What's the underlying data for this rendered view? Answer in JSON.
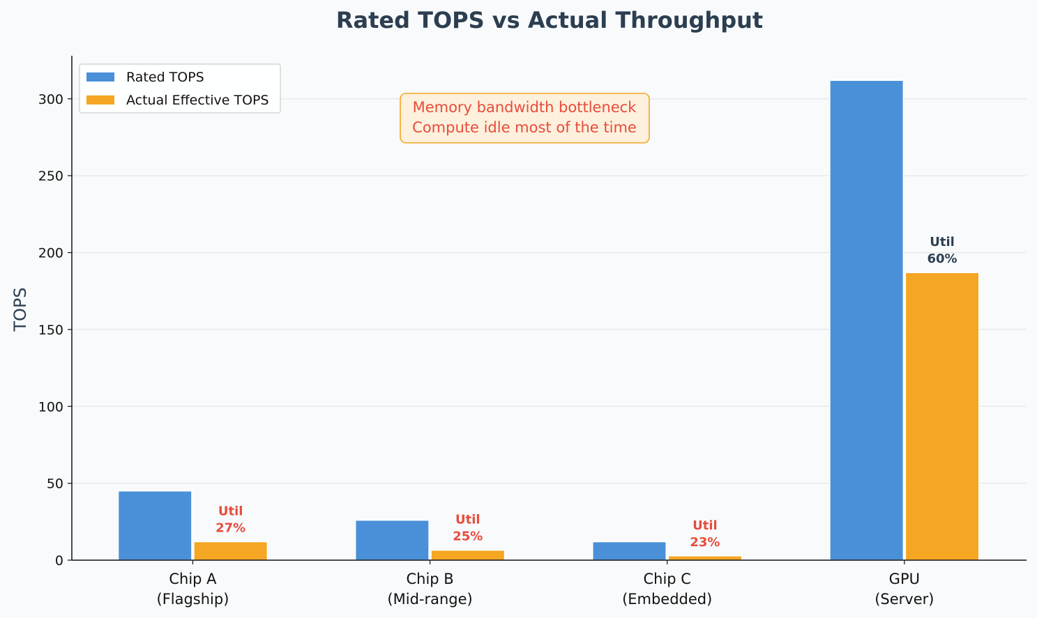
{
  "chart_data": {
    "type": "bar",
    "title": "Rated TOPS vs Actual Throughput",
    "xlabel": "",
    "ylabel": "TOPS",
    "ylim": [
      0,
      328
    ],
    "yticks": [
      0,
      50,
      100,
      150,
      200,
      250,
      300
    ],
    "grid": "horizontal",
    "legend_position": "top-left",
    "categories": [
      [
        "Chip A",
        "(Flagship)"
      ],
      [
        "Chip B",
        "(Mid-range)"
      ],
      [
        "Chip C",
        "(Embedded)"
      ],
      [
        "GPU",
        "(Server)"
      ]
    ],
    "series": [
      {
        "name": "Rated TOPS",
        "color": "#4a90d9",
        "values": [
          45,
          26,
          12,
          312
        ]
      },
      {
        "name": "Actual Effective TOPS",
        "color": "#f5a623",
        "values": [
          12,
          6.5,
          2.8,
          187
        ]
      }
    ],
    "utilization_labels": [
      {
        "lines": [
          "Util",
          "27%"
        ],
        "color": "#e74c3c"
      },
      {
        "lines": [
          "Util",
          "25%"
        ],
        "color": "#e74c3c"
      },
      {
        "lines": [
          "Util",
          "23%"
        ],
        "color": "#e74c3c"
      },
      {
        "lines": [
          "Util",
          "60%"
        ],
        "color": "#2c3e50"
      }
    ],
    "annotation": {
      "lines": [
        "Memory bandwidth bottleneck",
        "Compute idle most of the time"
      ],
      "text_color": "#e74c3c",
      "box_fill": "#fdf0dc",
      "box_stroke": "#f5a623",
      "anchor": "top-center"
    }
  }
}
